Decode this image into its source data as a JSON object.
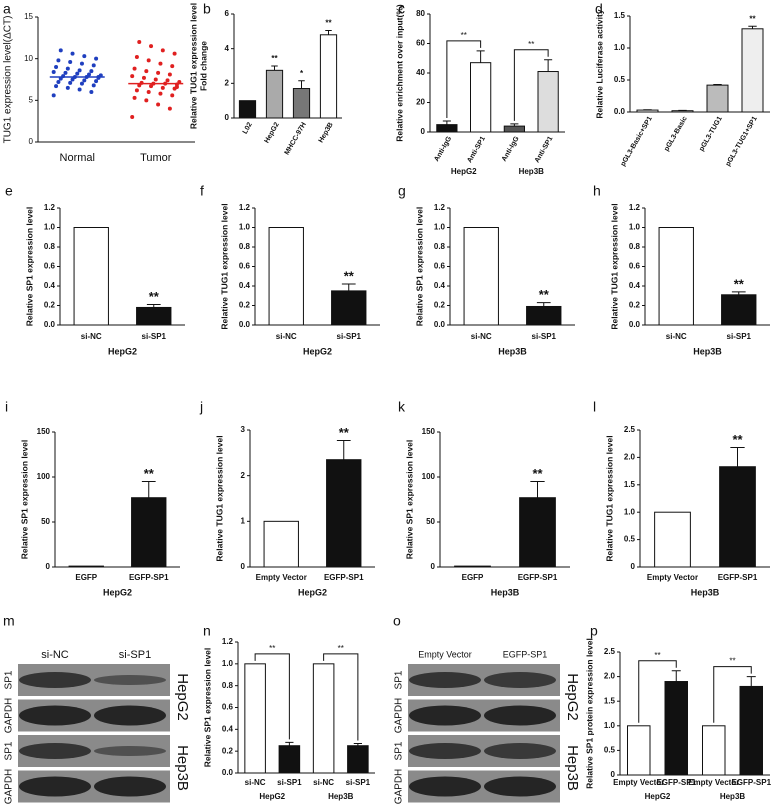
{
  "chart_data": [
    {
      "panel": "a",
      "type": "dot",
      "ylabel": [
        "TUG1 expression level(ΔCT)"
      ],
      "categories": [
        "Normal",
        "Tumor"
      ],
      "colors": [
        "#1f3fbf",
        "#e02020"
      ],
      "points": [
        [
          5.6,
          6.0,
          6.3,
          6.5,
          6.7,
          6.8,
          7.0,
          7.1,
          7.2,
          7.3,
          7.4,
          7.5,
          7.6,
          7.7,
          7.8,
          7.8,
          7.9,
          8.0,
          8.1,
          8.2,
          8.3,
          8.4,
          8.5,
          8.6,
          8.8,
          9.0,
          9.2,
          9.4,
          9.6,
          9.8,
          10.0,
          10.3,
          10.6,
          11.0,
          7.8
        ],
        [
          3.0,
          4.0,
          4.5,
          5.0,
          5.3,
          5.6,
          5.8,
          6.0,
          6.2,
          6.4,
          6.5,
          6.7,
          6.8,
          6.9,
          7.0,
          7.0,
          7.1,
          7.2,
          7.4,
          7.5,
          7.7,
          7.9,
          8.1,
          8.3,
          8.5,
          8.8,
          9.1,
          9.4,
          9.8,
          10.2,
          10.6,
          11.0,
          11.5,
          12.0,
          6.6
        ]
      ],
      "medians": [
        7.8,
        7.0
      ],
      "ylim": [
        0,
        15
      ],
      "yticks": [
        0,
        5,
        10,
        15
      ]
    },
    {
      "panel": "b",
      "type": "bar",
      "ylabel": [
        "Relative TUG1 expression level",
        "Fold change"
      ],
      "categories": [
        "L02",
        "HepG2",
        "MHCC-97H",
        "Hep3B"
      ],
      "values": [
        1,
        2.75,
        1.7,
        4.8
      ],
      "errors": [
        null,
        0.25,
        0.45,
        0.25
      ],
      "colors": [
        "#111111",
        "#aaaaaa",
        "#777777",
        "#ffffff"
      ],
      "significance": [
        null,
        "**",
        "*",
        "**"
      ],
      "ylim": [
        0,
        6
      ],
      "yticks": [
        0,
        2,
        4,
        6
      ]
    },
    {
      "panel": "c",
      "type": "bar",
      "ylabel": [
        "Relative enrichment over input(%)"
      ],
      "categories": [
        "Anti-IgG",
        "Anti-SP1",
        "Anti-IgG",
        "Anti-SP1"
      ],
      "groups": [
        "HepG2",
        "Hep3B"
      ],
      "values": [
        5,
        47,
        4,
        41
      ],
      "errors": [
        2.5,
        8,
        1.5,
        8
      ],
      "colors": [
        "#111111",
        "#ffffff",
        "#555555",
        "#dddddd"
      ],
      "bracket_labels": [
        "**",
        "**"
      ],
      "ylim": [
        0,
        80
      ],
      "yticks": [
        0,
        20,
        40,
        60,
        80
      ]
    },
    {
      "panel": "d",
      "type": "bar",
      "ylabel": [
        "Relative Luciferase activity"
      ],
      "categories": [
        "pGL3-Basic+SP1",
        "pGL3-Basic",
        "pGL3-TUG1",
        "pGL3-TUG1+SP1"
      ],
      "values": [
        0.03,
        0.02,
        0.42,
        1.3
      ],
      "errors": [
        0.005,
        0.005,
        0.01,
        0.04
      ],
      "colors": [
        "#ffffff",
        "#ffffff",
        "#bbbbbb",
        "#eeeeee"
      ],
      "significance": [
        null,
        null,
        null,
        "**"
      ],
      "ylim": [
        0,
        1.5
      ],
      "yticks": [
        {
          "value": 0,
          "label": "0.0"
        },
        0.5,
        {
          "value": 1,
          "label": "1.0"
        },
        1.5
      ]
    },
    {
      "panel": "e",
      "type": "bar",
      "ylabel": [
        "Relative SP1 expression level"
      ],
      "categories": [
        "si-NC",
        "si-SP1"
      ],
      "group": "HepG2",
      "values": [
        1.0,
        0.18
      ],
      "errors": [
        null,
        0.03
      ],
      "colors": [
        "#ffffff",
        "#111111"
      ],
      "significance": [
        null,
        "**"
      ],
      "ylim": [
        0,
        1.2
      ],
      "yticks": [
        {
          "value": 0,
          "label": "0.0"
        },
        0.2,
        0.4,
        0.6,
        0.8,
        {
          "value": 1,
          "label": "1.0"
        },
        1.2
      ]
    },
    {
      "panel": "f",
      "type": "bar",
      "ylabel": [
        "Relative TUG1 expression level"
      ],
      "categories": [
        "si-NC",
        "si-SP1"
      ],
      "group": "HepG2",
      "values": [
        1.0,
        0.35
      ],
      "errors": [
        null,
        0.07
      ],
      "colors": [
        "#ffffff",
        "#111111"
      ],
      "significance": [
        null,
        "**"
      ],
      "ylim": [
        0,
        1.2
      ],
      "yticks": [
        {
          "value": 0,
          "label": "0.0"
        },
        0.2,
        0.4,
        0.6,
        0.8,
        {
          "value": 1,
          "label": "1.0"
        },
        1.2
      ]
    },
    {
      "panel": "g",
      "type": "bar",
      "ylabel": [
        "Relative SP1 expression level"
      ],
      "categories": [
        "si-NC",
        "si-SP1"
      ],
      "group": "Hep3B",
      "values": [
        1.0,
        0.19
      ],
      "errors": [
        null,
        0.04
      ],
      "colors": [
        "#ffffff",
        "#111111"
      ],
      "significance": [
        null,
        "**"
      ],
      "ylim": [
        0,
        1.2
      ],
      "yticks": [
        {
          "value": 0,
          "label": "0.0"
        },
        0.2,
        0.4,
        0.6,
        0.8,
        {
          "value": 1,
          "label": "1.0"
        },
        1.2
      ]
    },
    {
      "panel": "h",
      "type": "bar",
      "ylabel": [
        "Relative TUG1 expression level"
      ],
      "categories": [
        "si-NC",
        "si-SP1"
      ],
      "group": "Hep3B",
      "values": [
        1.0,
        0.31
      ],
      "errors": [
        null,
        0.03
      ],
      "colors": [
        "#ffffff",
        "#111111"
      ],
      "significance": [
        null,
        "**"
      ],
      "ylim": [
        0,
        1.2
      ],
      "yticks": [
        {
          "value": 0,
          "label": "0.0"
        },
        0.2,
        0.4,
        0.6,
        0.8,
        {
          "value": 1,
          "label": "1.0"
        },
        1.2
      ]
    },
    {
      "panel": "i",
      "type": "bar",
      "ylabel": [
        "Relative SP1 expression level"
      ],
      "categories": [
        "EGFP",
        "EGFP-SP1"
      ],
      "group": "HepG2",
      "values": [
        1,
        77
      ],
      "errors": [
        null,
        18
      ],
      "colors": [
        "#ffffff",
        "#111111"
      ],
      "significance": [
        null,
        "**"
      ],
      "ylim": [
        0,
        150
      ],
      "yticks": [
        0,
        50,
        100,
        150
      ]
    },
    {
      "panel": "j",
      "type": "bar",
      "ylabel": [
        "Relative TUG1 expression level"
      ],
      "categories": [
        "Empty Vector",
        "EGFP-SP1"
      ],
      "group": "HepG2",
      "values": [
        1,
        2.35
      ],
      "errors": [
        null,
        0.42
      ],
      "colors": [
        "#ffffff",
        "#111111"
      ],
      "significance": [
        null,
        "**"
      ],
      "ylim": [
        0,
        3
      ],
      "yticks": [
        0,
        1,
        2,
        3
      ]
    },
    {
      "panel": "k",
      "type": "bar",
      "ylabel": [
        "Relative SP1 expression level"
      ],
      "categories": [
        "EGFP",
        "EGFP-SP1"
      ],
      "group": "Hep3B",
      "values": [
        1,
        77
      ],
      "errors": [
        null,
        18
      ],
      "colors": [
        "#ffffff",
        "#111111"
      ],
      "significance": [
        null,
        "**"
      ],
      "ylim": [
        0,
        150
      ],
      "yticks": [
        0,
        50,
        100,
        150
      ]
    },
    {
      "panel": "l",
      "type": "bar",
      "ylabel": [
        "Relative TUG1 expression level"
      ],
      "categories": [
        "Empty Vector",
        "EGFP-SP1"
      ],
      "group": "Hep3B",
      "values": [
        1,
        1.83
      ],
      "errors": [
        null,
        0.35
      ],
      "colors": [
        "#ffffff",
        "#111111"
      ],
      "significance": [
        null,
        "**"
      ],
      "ylim": [
        0,
        2.5
      ],
      "yticks": [
        0,
        0.5,
        {
          "value": 1,
          "label": "1.0"
        },
        1.5,
        {
          "value": 2,
          "label": "2.0"
        },
        2.5
      ]
    },
    {
      "panel": "n",
      "type": "bar",
      "ylabel": [
        "Relative SP1 expression level"
      ],
      "categories": [
        "si-NC",
        "si-SP1",
        "si-NC",
        "si-SP1"
      ],
      "groups": [
        "HepG2",
        "Hep3B"
      ],
      "values": [
        1.0,
        0.25,
        1.0,
        0.25
      ],
      "errors": [
        null,
        0.03,
        null,
        0.02
      ],
      "colors": [
        "#ffffff",
        "#111111",
        "#ffffff",
        "#111111"
      ],
      "bracket_labels": [
        "**",
        "**"
      ],
      "ylim": [
        0,
        1.2
      ],
      "yticks": [
        {
          "value": 0,
          "label": "0.0"
        },
        0.2,
        0.4,
        0.6,
        0.8,
        {
          "value": 1,
          "label": "1.0"
        },
        1.2
      ]
    },
    {
      "panel": "p",
      "type": "bar",
      "ylabel": [
        "Relative SP1 protein expression level"
      ],
      "categories": [
        "Empty Vector",
        "EGFP-SP1",
        "Empty Vector",
        "EGFP-SP1"
      ],
      "groups": [
        "HepG2",
        "Hep3B"
      ],
      "values": [
        1,
        1.9,
        1,
        1.8
      ],
      "errors": [
        null,
        0.22,
        null,
        0.2
      ],
      "colors": [
        "#ffffff",
        "#111111",
        "#ffffff",
        "#111111"
      ],
      "bracket_labels": [
        "**",
        "**"
      ],
      "ylim": [
        0,
        2.5
      ],
      "yticks": [
        0,
        0.5,
        {
          "value": 1,
          "label": "1.0"
        },
        1.5,
        {
          "value": 2,
          "label": "2.0"
        },
        2.5
      ]
    }
  ],
  "blots": [
    {
      "panel": "m",
      "columns": [
        "si-NC",
        "si-SP1"
      ],
      "rows": [
        "SP1",
        "GAPDH",
        "SP1",
        "GAPDH"
      ],
      "cells": [
        "HepG2",
        "Hep3B"
      ]
    },
    {
      "panel": "o",
      "columns": [
        "Empty Vector",
        "EGFP-SP1"
      ],
      "rows": [
        "SP1",
        "GAPDH",
        "SP1",
        "GAPDH"
      ],
      "cells": [
        "HepG2",
        "Hep3B"
      ]
    }
  ]
}
